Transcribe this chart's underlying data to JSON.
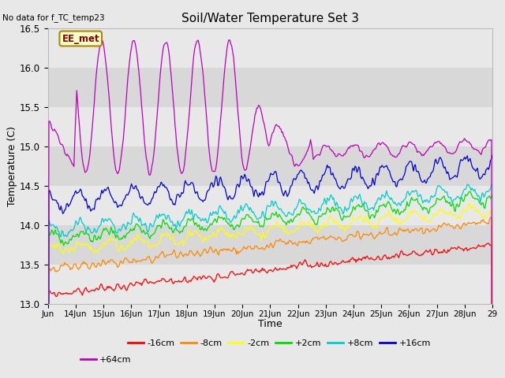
{
  "title": "Soil/Water Temperature Set 3",
  "xlabel": "Time",
  "ylabel": "Temperature (C)",
  "no_data_text": "No data for f_TC_temp23",
  "annotation_text": "EE_met",
  "ylim": [
    13.0,
    16.5
  ],
  "yticks": [
    13.0,
    13.5,
    14.0,
    14.5,
    15.0,
    15.5,
    16.0,
    16.5
  ],
  "x_tick_labels": [
    "Jun",
    "14Jun",
    "15Jun",
    "16Jun",
    "17Jun",
    "18Jun",
    "19Jun",
    "20Jun",
    "21Jun",
    "22Jun",
    "23Jun",
    "24Jun",
    "25Jun",
    "26Jun",
    "27Jun",
    "28Jun",
    "29"
  ],
  "series_colors": [
    "#ff0000",
    "#ff8800",
    "#ffff00",
    "#00dd00",
    "#00cccc",
    "#0000dd",
    "#bb00bb"
  ],
  "series_labels": [
    "-16cm",
    "-8cm",
    "-2cm",
    "+2cm",
    "+8cm",
    "+16cm",
    "+64cm"
  ],
  "bg_color": "#e8e8e8",
  "band_colors": [
    "#e8e8e8",
    "#d8d8d8"
  ],
  "n_points": 480,
  "figsize": [
    6.4,
    4.8
  ],
  "dpi": 100
}
